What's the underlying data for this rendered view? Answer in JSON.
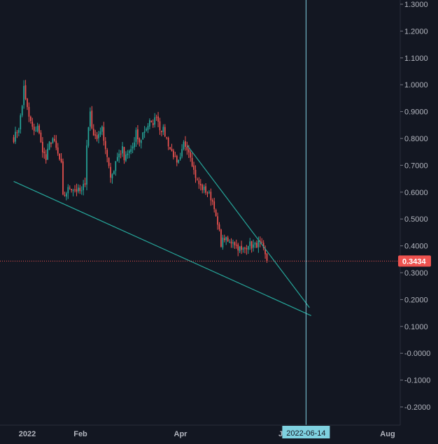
{
  "chart_data": {
    "type": "candlestick",
    "title": "",
    "xlabel": "",
    "ylabel": "",
    "ylim": [
      -0.25,
      1.31
    ],
    "y_ticks": [
      "1.3000",
      "1.2000",
      "1.1000",
      "1.0000",
      "0.9000",
      "0.8000",
      "0.7000",
      "0.6000",
      "0.5000",
      "0.4000",
      "0.3000",
      "0.2000",
      "0.1000",
      "-0.0000",
      "-0.1000",
      "-0.2000"
    ],
    "x_ticks": [
      "2022",
      "Feb",
      "Apr",
      "J",
      "Aug"
    ],
    "crosshair_date": "2022-06-14",
    "last_price": 0.3434,
    "last_price_label": "0.3434",
    "colors": {
      "background": "#131722",
      "up": "#26a69a",
      "down": "#ef5350",
      "trendline": "#26a69a",
      "crosshair": "#7fd1e0",
      "price_line": "#ef5350",
      "crosshair_label_bg": "#7fd1e0"
    },
    "series": [
      {
        "close_path": [
          [
            "2021-12-24",
            0.8
          ],
          [
            "2021-12-27",
            0.84
          ],
          [
            "2021-12-29",
            0.92
          ],
          [
            "2021-12-30",
            1.0
          ],
          [
            "2021-12-31",
            0.94
          ],
          [
            "2022-01-02",
            0.88
          ],
          [
            "2022-01-03",
            0.86
          ],
          [
            "2022-01-05",
            0.82
          ],
          [
            "2022-01-07",
            0.85
          ],
          [
            "2022-01-09",
            0.78
          ],
          [
            "2022-01-11",
            0.74
          ],
          [
            "2022-01-12",
            0.72
          ],
          [
            "2022-01-14",
            0.78
          ],
          [
            "2022-01-16",
            0.8
          ],
          [
            "2022-01-18",
            0.76
          ],
          [
            "2022-01-19",
            0.74
          ],
          [
            "2022-01-21",
            0.7
          ],
          [
            "2022-01-22",
            0.58
          ],
          [
            "2022-01-24",
            0.6
          ],
          [
            "2022-01-26",
            0.62
          ],
          [
            "2022-01-29",
            0.61
          ],
          [
            "2022-02-02",
            0.6
          ],
          [
            "2022-02-04",
            0.64
          ],
          [
            "2022-02-05",
            0.78
          ],
          [
            "2022-02-07",
            0.9
          ],
          [
            "2022-02-08",
            0.84
          ],
          [
            "2022-02-10",
            0.8
          ],
          [
            "2022-02-12",
            0.82
          ],
          [
            "2022-02-14",
            0.84
          ],
          [
            "2022-02-15",
            0.78
          ],
          [
            "2022-02-17",
            0.74
          ],
          [
            "2022-02-19",
            0.66
          ],
          [
            "2022-02-21",
            0.68
          ],
          [
            "2022-02-22",
            0.72
          ],
          [
            "2022-02-24",
            0.74
          ],
          [
            "2022-02-26",
            0.76
          ],
          [
            "2022-02-27",
            0.72
          ],
          [
            "2022-03-01",
            0.74
          ],
          [
            "2022-03-03",
            0.76
          ],
          [
            "2022-03-05",
            0.78
          ],
          [
            "2022-03-06",
            0.82
          ],
          [
            "2022-03-08",
            0.78
          ],
          [
            "2022-03-10",
            0.82
          ],
          [
            "2022-03-12",
            0.84
          ],
          [
            "2022-03-14",
            0.86
          ],
          [
            "2022-03-15",
            0.85
          ],
          [
            "2022-03-17",
            0.87
          ],
          [
            "2022-03-18",
            0.89
          ],
          [
            "2022-03-20",
            0.84
          ],
          [
            "2022-03-22",
            0.83
          ],
          [
            "2022-03-24",
            0.8
          ],
          [
            "2022-03-26",
            0.76
          ],
          [
            "2022-03-28",
            0.74
          ],
          [
            "2022-03-30",
            0.7
          ],
          [
            "2022-04-01",
            0.72
          ],
          [
            "2022-04-03",
            0.78
          ],
          [
            "2022-04-05",
            0.77
          ],
          [
            "2022-04-07",
            0.74
          ],
          [
            "2022-04-09",
            0.68
          ],
          [
            "2022-04-11",
            0.64
          ],
          [
            "2022-04-13",
            0.62
          ],
          [
            "2022-04-15",
            0.61
          ],
          [
            "2022-04-17",
            0.6
          ],
          [
            "2022-04-19",
            0.58
          ],
          [
            "2022-04-21",
            0.55
          ],
          [
            "2022-04-22",
            0.5
          ],
          [
            "2022-04-24",
            0.45
          ],
          [
            "2022-04-25",
            0.41
          ],
          [
            "2022-04-27",
            0.43
          ],
          [
            "2022-04-28",
            0.42
          ],
          [
            "2022-04-30",
            0.41
          ],
          [
            "2022-05-02",
            0.42
          ],
          [
            "2022-05-04",
            0.4
          ],
          [
            "2022-05-06",
            0.39
          ],
          [
            "2022-05-07",
            0.38
          ],
          [
            "2022-05-09",
            0.39
          ],
          [
            "2022-05-11",
            0.41
          ],
          [
            "2022-05-13",
            0.4
          ],
          [
            "2022-05-15",
            0.4
          ],
          [
            "2022-05-17",
            0.41
          ],
          [
            "2022-05-19",
            0.4
          ],
          [
            "2022-05-20",
            0.38
          ],
          [
            "2022-05-22",
            0.3434
          ]
        ],
        "volatility": 0.018
      }
    ],
    "trendlines": [
      {
        "from": [
          "2021-12-24",
          0.64
        ],
        "to": [
          "2022-06-17",
          0.14
        ]
      },
      {
        "from": [
          "2022-04-05",
          0.775
        ],
        "to": [
          "2022-06-16",
          0.17
        ]
      }
    ]
  }
}
